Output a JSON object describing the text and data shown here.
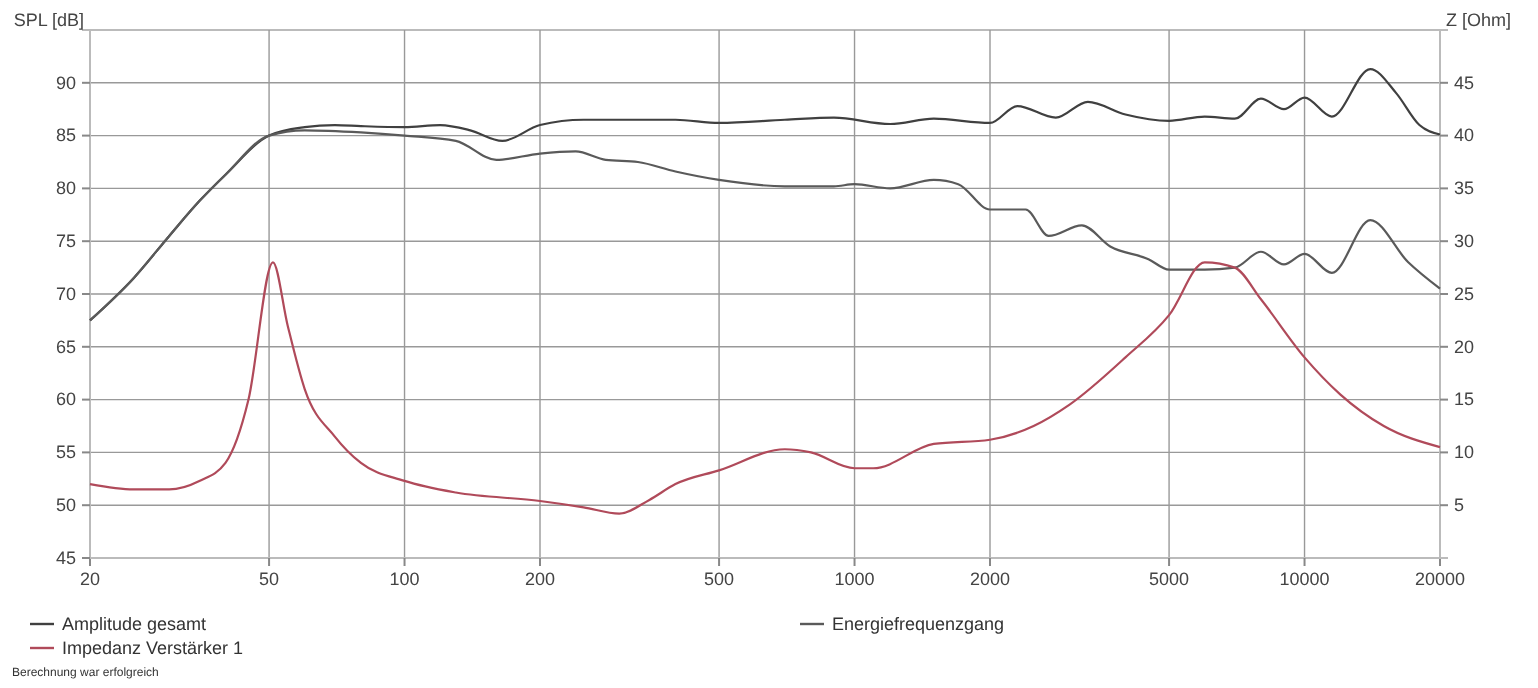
{
  "chart_data": {
    "type": "line",
    "xlabel": null,
    "ylabel": "SPL [dB]",
    "y2label": "Z [Ohm]",
    "log": "x",
    "grid": true,
    "legend": "bottom",
    "marker": "none",
    "line_style": "solid",
    "xlim": [
      20,
      20000
    ],
    "xticks": [
      20,
      50,
      100,
      200,
      500,
      1000,
      2000,
      5000,
      10000,
      20000
    ],
    "ylim": [
      45,
      95
    ],
    "yticks": [
      45,
      50,
      55,
      60,
      65,
      70,
      75,
      80,
      85,
      90
    ],
    "y2lim": [
      0,
      50
    ],
    "y2ticks": [
      5,
      10,
      15,
      20,
      25,
      30,
      35,
      40,
      45
    ],
    "series": [
      {
        "name": "Amplitude gesamt",
        "color": "#404040",
        "x": [
          20,
          25,
          30,
          35,
          40,
          50,
          60,
          70,
          80,
          100,
          120,
          140,
          165,
          200,
          250,
          300,
          400,
          500,
          700,
          900,
          1200,
          1500,
          2000,
          2300,
          2800,
          3300,
          4000,
          5000,
          6000,
          7000,
          8000,
          9000,
          10000,
          11500,
          14000,
          16000,
          18000,
          20000
        ],
        "values": [
          67.5,
          71.5,
          75.5,
          78.8,
          81.3,
          85,
          85.8,
          86,
          85.9,
          85.8,
          86,
          85.5,
          84.5,
          86,
          86.5,
          86.5,
          86.5,
          86.2,
          86.5,
          86.7,
          86.1,
          86.6,
          86.2,
          87.8,
          86.7,
          88.2,
          87,
          86.4,
          86.8,
          86.6,
          88.5,
          87.5,
          88.6,
          86.8,
          91.3,
          89,
          86,
          85.1
        ]
      },
      {
        "name": "Energiefrequenzgang",
        "color": "#5a5a5a",
        "x": [
          20,
          25,
          30,
          35,
          40,
          50,
          60,
          80,
          100,
          130,
          160,
          200,
          240,
          280,
          330,
          400,
          500,
          700,
          900,
          1000,
          1200,
          1500,
          1700,
          2000,
          2400,
          2700,
          3200,
          3700,
          4500,
          5000,
          6000,
          7000,
          8000,
          9000,
          10000,
          11500,
          14000,
          17000,
          20000
        ],
        "values": [
          67.5,
          71.5,
          75.5,
          78.8,
          81.3,
          85,
          85.5,
          85.3,
          85,
          84.5,
          82.7,
          83.3,
          83.5,
          82.7,
          82.5,
          81.6,
          80.8,
          80.2,
          80.2,
          80.4,
          80,
          80.8,
          80.4,
          78,
          78,
          75.5,
          76.5,
          74.5,
          73.3,
          72.3,
          72.3,
          72.5,
          74,
          72.8,
          73.8,
          72,
          77,
          73,
          70.5
        ]
      },
      {
        "name": "Impedanz Verstärker 1",
        "color": "#b04a5a",
        "axis": "y2",
        "x": [
          20,
          25,
          30,
          35,
          40,
          45,
          51,
          55,
          60,
          70,
          80,
          100,
          130,
          200,
          250,
          300,
          350,
          400,
          500,
          700,
          800,
          1000,
          1100,
          1500,
          2000,
          2500,
          3000,
          4000,
          5000,
          6000,
          7000,
          8000,
          10000,
          12000,
          15000,
          20000
        ],
        "values": [
          7,
          6.5,
          6.5,
          7.3,
          9,
          15,
          28,
          22,
          16,
          11.5,
          9,
          7.3,
          6.2,
          5.4,
          4.8,
          4.2,
          5.5,
          7,
          8.3,
          10.3,
          10,
          8.5,
          8.5,
          10.8,
          11.2,
          12.5,
          14.5,
          19,
          23,
          28,
          27.5,
          24.5,
          19,
          15.5,
          12.5,
          10.5
        ]
      }
    ],
    "annotations": [
      "Berechnung war erfolgreich"
    ]
  }
}
